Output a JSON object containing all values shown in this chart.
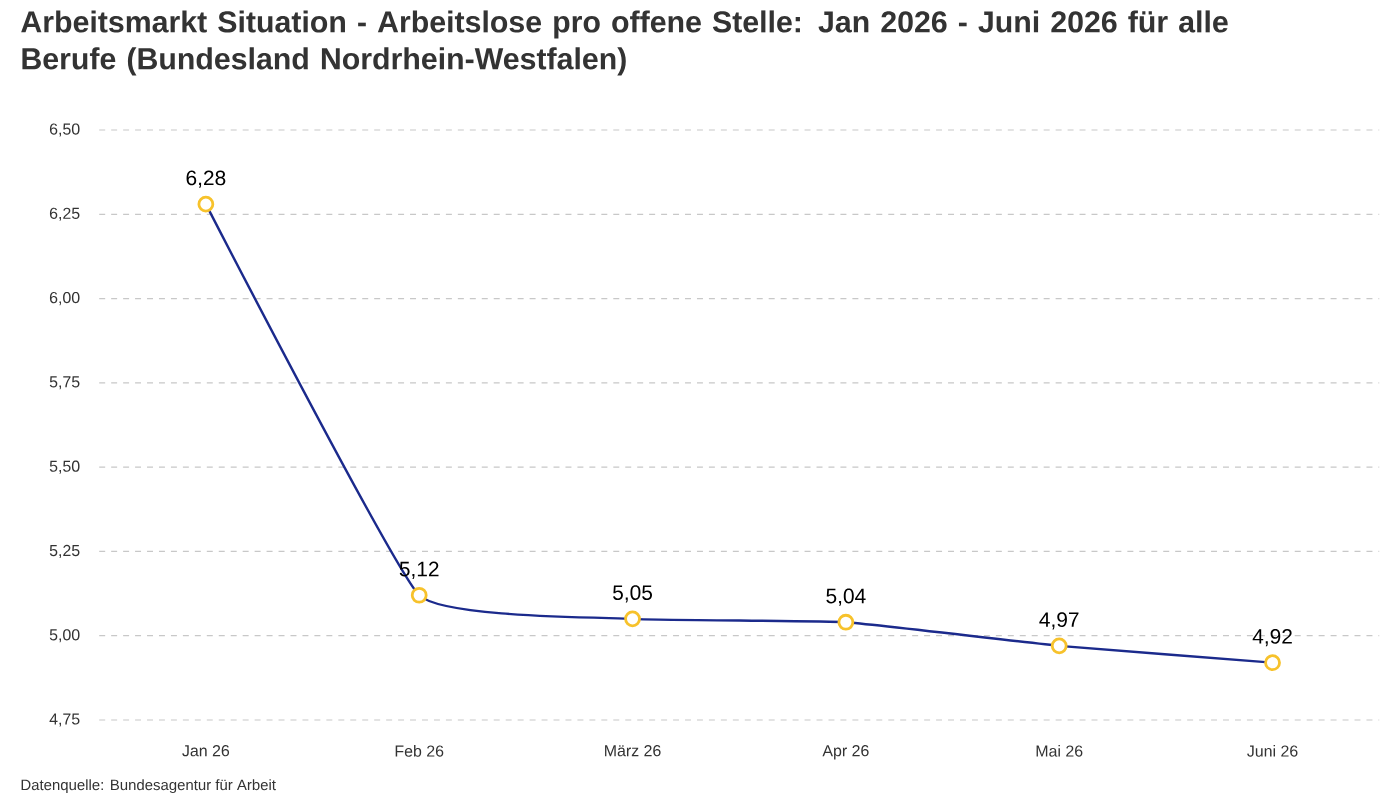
{
  "chart_data": {
    "type": "line",
    "title": "Arbeitsmarkt Situation - Arbeitslose pro offene Stelle: Jan 2026 - Juni 2026 für alle Berufe (Bundesland Nordrhein-Westfalen)",
    "categories": [
      "Jan 26",
      "Feb 26",
      "März 26",
      "Apr 26",
      "Mai 26",
      "Juni 26"
    ],
    "values": [
      6.28,
      5.12,
      5.05,
      5.04,
      4.97,
      4.92
    ],
    "value_labels": [
      "6,28",
      "5,12",
      "5,05",
      "5,04",
      "4,97",
      "4,92"
    ],
    "color": "#1b2a8c",
    "marker": "circle",
    "line_style": "solid",
    "grid": "y",
    "ylim": [
      4.75,
      6.5
    ],
    "yticks": [
      {
        "value": 4.75,
        "label": "4,75"
      },
      {
        "value": 5.0,
        "label": "5,00"
      },
      {
        "value": 5.25,
        "label": "5,25"
      },
      {
        "value": 5.5,
        "label": "5,50"
      },
      {
        "value": 5.75,
        "label": "5,75"
      },
      {
        "value": 6.0,
        "label": "6,00"
      },
      {
        "value": 6.25,
        "label": "6,25"
      },
      {
        "value": 6.5,
        "label": "6,50"
      }
    ],
    "annotations": [
      "Datenquelle: Bundesagentur für Arbeit"
    ]
  }
}
